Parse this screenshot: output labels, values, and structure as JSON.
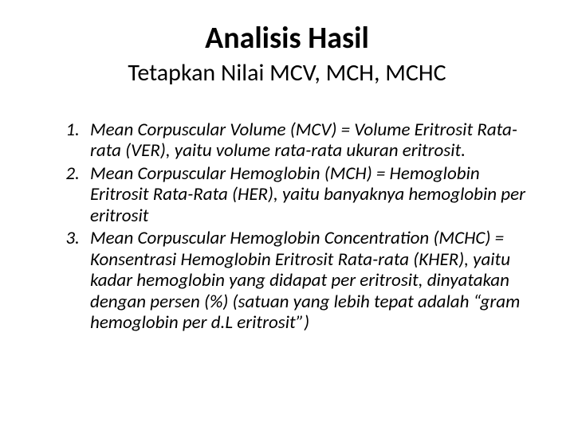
{
  "heading": {
    "title": "Analisis Hasil",
    "subtitle": "Tetapkan Nilai MCV, MCH, MCHC"
  },
  "items": [
    "Mean Corpuscular Volume (MCV) = Volume Eritrosit Rata-rata (VER), yaitu volume rata-rata ukuran eritrosit.",
    "Mean Corpuscular Hemoglobin (MCH) = Hemoglobin Eritrosit Rata-Rata (HER), yaitu banyaknya hemoglobin per eritrosit",
    "Mean Corpuscular Hemoglobin Concentration (MCHC) = Konsentrasi Hemoglobin Eritrosit Rata-rata (KHER), yaitu kadar hemoglobin yang didapat per eritrosit, dinyatakan dengan persen (%) (satuan yang lebih tepat adalah “gram hemoglobin per d.L eritrosit”)"
  ],
  "style": {
    "background_color": "#ffffff",
    "text_color": "#000000",
    "title_fontsize": 38,
    "title_fontweight": "bold",
    "subtitle_fontsize": 30,
    "body_fontsize": 23,
    "body_fontstyle": "italic",
    "font_family": "Calibri"
  }
}
